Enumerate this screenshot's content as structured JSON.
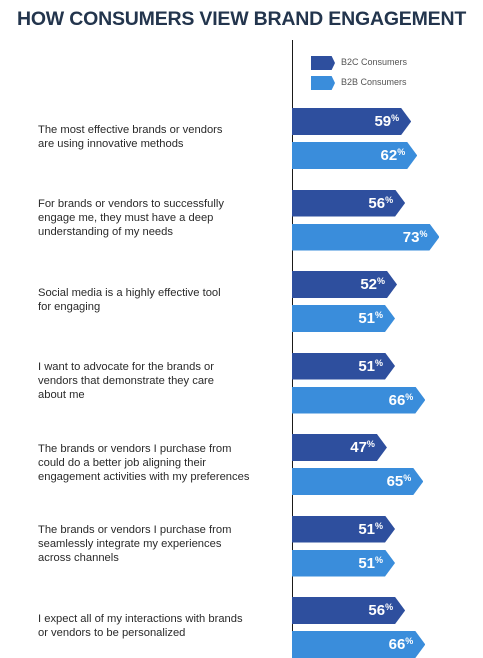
{
  "title": "HOW CONSUMERS VIEW BRAND ENGAGEMENT",
  "legend": [
    {
      "label": "B2C Consumers",
      "color": "#2e4f9e"
    },
    {
      "label": "B2B Consumers",
      "color": "#3a8ddb"
    }
  ],
  "chart_data": {
    "type": "bar",
    "orientation": "horizontal",
    "title": "HOW CONSUMERS VIEW BRAND ENGAGEMENT",
    "value_suffix": "%",
    "categories": [
      "The most effective brands or vendors are using innovative methods",
      "For brands or vendors to successfully engage me, they must have a deep understanding of my needs",
      "Social media is a highly effective tool for engaging",
      "I want to advocate for the brands or vendors that demonstrate they care about me",
      "The brands or vendors I purchase from could do a better job aligning their engagement activities with my preferences",
      "The brands or vendors I purchase from seamlessly integrate my experiences across channels",
      "I expect all of my interactions with brands or vendors to be personalized"
    ],
    "series": [
      {
        "name": "B2C Consumers",
        "color": "#2e4f9e",
        "values": [
          59,
          56,
          52,
          51,
          47,
          51,
          56
        ]
      },
      {
        "name": "B2B Consumers",
        "color": "#3a8ddb",
        "values": [
          62,
          73,
          51,
          66,
          65,
          51,
          66
        ]
      }
    ]
  }
}
